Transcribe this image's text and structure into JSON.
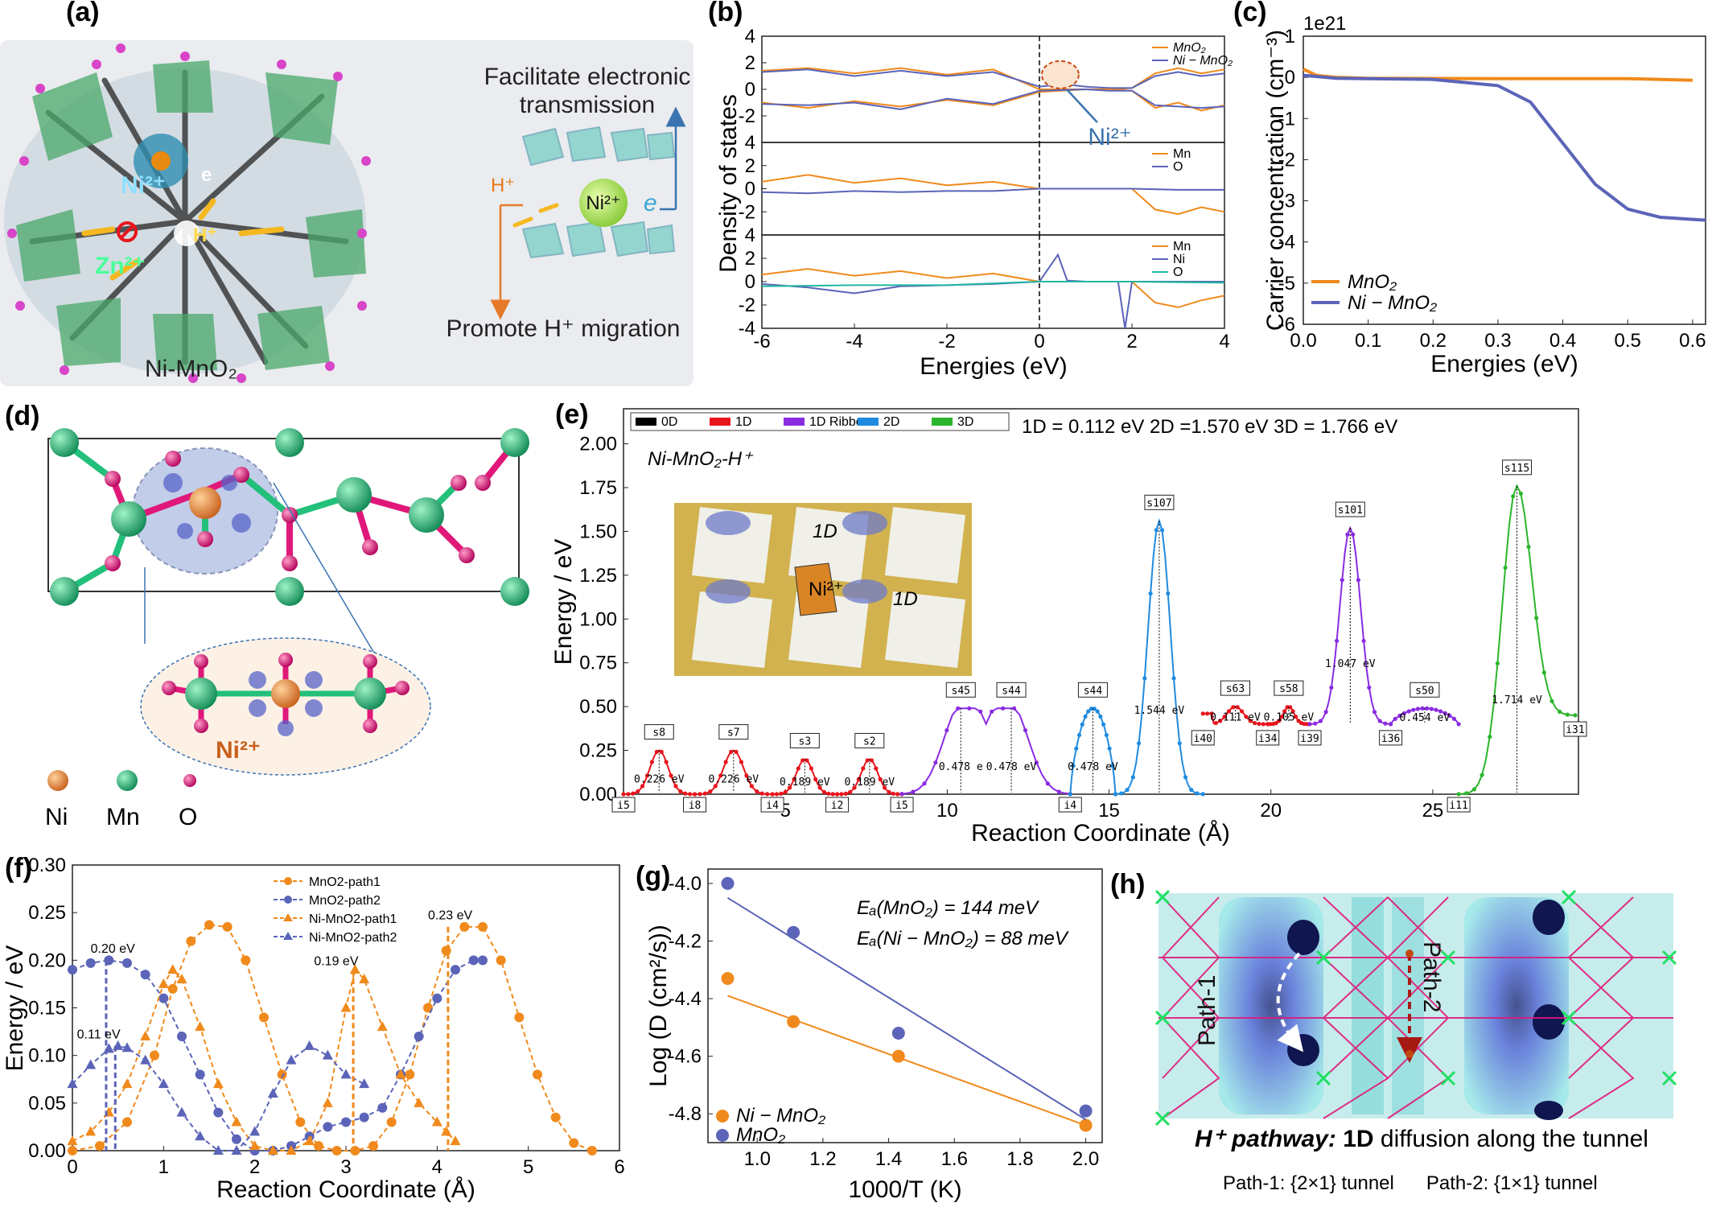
{
  "panels": {
    "a": {
      "label": "(a)",
      "title1": "Facilitate electronic",
      "title2": "transmission",
      "bottom": "Promote H⁺ migration",
      "material": "Ni-MnO₂",
      "ions": {
        "ni": "Ni²⁺",
        "zn": "Zn²⁺",
        "h": "H⁺",
        "e": "e"
      }
    },
    "d": {
      "label": "(d)",
      "legend": [
        {
          "name": "Ni",
          "color": "#e07b39"
        },
        {
          "name": "Mn",
          "color": "#22c07a"
        },
        {
          "name": "O",
          "color": "#e0187a"
        }
      ],
      "ion_label": "Ni²⁺"
    },
    "h": {
      "label": "(h)",
      "path1": "Path-1",
      "path2": "Path-2",
      "caption_bold": "H⁺ pathway:",
      "caption_1d": " 1D",
      "caption_rest": " diffusion along the tunnel",
      "footer": "Path-1: {2×1} tunnel      Path-2: {1×1} tunnel"
    }
  },
  "colors": {
    "mno2": "#f08a1c",
    "nimno2": "#5b64b8",
    "o": "#22b7a0",
    "c0D": "#000000",
    "c1D": "#e8141c",
    "c1DR": "#8a2be2",
    "c2D": "#1f8be0",
    "c3D": "#2cb52c"
  },
  "chart_data": [
    {
      "id": "b",
      "label": "(b)",
      "type": "line",
      "ylabel": "Density of states",
      "xlabel": "Energies (eV)",
      "xlim": [
        -6,
        4
      ],
      "xticks": [
        "-6",
        "-4",
        "-2",
        "0",
        "2",
        "4"
      ],
      "annotation": "Ni²⁺",
      "subplots": [
        {
          "ylim": [
            -4,
            4
          ],
          "yticks": [
            "4",
            "2",
            "0",
            "-2"
          ],
          "legend": [
            "MnO₂",
            "Ni − MnO₂"
          ],
          "series": [
            {
              "name": "MnO₂",
              "x": [
                -6,
                -5,
                -4,
                -3,
                -2,
                -1,
                0,
                0.5,
                1,
                1.5,
                2,
                2.5,
                3,
                3.5,
                4
              ],
              "y": [
                1.4,
                1.6,
                1.2,
                1.6,
                1.1,
                1.5,
                0,
                0,
                0,
                0,
                0.1,
                1.2,
                1.6,
                1.2,
                1.5
              ]
            },
            {
              "name": "Ni − MnO₂",
              "x": [
                -6,
                -5,
                -4,
                -3,
                -2,
                -1,
                0,
                0.5,
                1,
                1.5,
                2,
                2.5,
                3,
                3.5,
                4
              ],
              "y": [
                1.3,
                1.5,
                1.0,
                1.4,
                1.0,
                1.3,
                0.2,
                0.4,
                0.2,
                0.1,
                0.1,
                1.0,
                1.3,
                1.0,
                1.2
              ]
            },
            {
              "name": "MnO₂ (down)",
              "x": [
                -6,
                -5,
                -4,
                -3,
                -2,
                -1,
                0,
                1,
                1.5,
                2,
                2.5,
                3,
                3.5,
                4
              ],
              "y": [
                -1.0,
                -1.4,
                -0.9,
                -1.3,
                -0.8,
                -1.2,
                -0.2,
                0,
                0,
                -0.1,
                -1.4,
                -1.0,
                -1.6,
                -1.2
              ]
            },
            {
              "name": "Ni − MnO₂ (down)",
              "x": [
                -6,
                -5,
                -4,
                -3,
                -2,
                -1,
                0,
                1,
                1.5,
                2,
                2.5,
                3,
                3.5,
                4
              ],
              "y": [
                -1.1,
                -1.2,
                -1.0,
                -1.5,
                -0.7,
                -1.1,
                -0.1,
                0,
                -0.1,
                -0.1,
                -1.2,
                -1.3,
                -1.4,
                -1.3
              ]
            }
          ]
        },
        {
          "ylim": [
            -4,
            4
          ],
          "yticks": [
            "4",
            "2",
            "0",
            "-2"
          ],
          "legend": [
            "Mn",
            "O"
          ],
          "series": [
            {
              "name": "Mn",
              "x": [
                -6,
                -5,
                -4,
                -3,
                -2,
                -1,
                0,
                1,
                2,
                2.5,
                3,
                3.5,
                4
              ],
              "y": [
                0.6,
                1.2,
                0.5,
                0.9,
                0.3,
                0.6,
                0,
                0,
                0,
                -1.8,
                -2.2,
                -1.6,
                -2.0
              ]
            },
            {
              "name": "O",
              "x": [
                -6,
                -5,
                -4,
                -3,
                -2,
                -1,
                0,
                1,
                2,
                3,
                4
              ],
              "y": [
                -0.3,
                -0.4,
                -0.2,
                -0.3,
                -0.2,
                -0.2,
                0,
                0,
                0,
                -0.1,
                -0.1
              ]
            }
          ]
        },
        {
          "ylim": [
            -4,
            4
          ],
          "yticks": [
            "4",
            "2",
            "0",
            "-2",
            "-4"
          ],
          "legend": [
            "Mn",
            "Ni",
            "O"
          ],
          "series": [
            {
              "name": "Mn",
              "x": [
                -6,
                -5,
                -4,
                -3,
                -2,
                -1,
                0,
                1,
                2,
                2.5,
                3,
                3.5,
                4
              ],
              "y": [
                0.6,
                1.1,
                0.5,
                0.9,
                0.3,
                0.7,
                0,
                0,
                0,
                -1.8,
                -2.2,
                -1.6,
                -1.2
              ]
            },
            {
              "name": "Ni",
              "x": [
                -6,
                -5,
                -4,
                -3,
                -2,
                -1,
                0,
                0.4,
                0.6,
                1,
                1.7,
                1.85,
                2,
                3,
                4
              ],
              "y": [
                -0.2,
                -0.5,
                -1.0,
                -0.4,
                -0.3,
                -0.2,
                0,
                2.3,
                0.1,
                0,
                0,
                -4.0,
                0,
                0,
                0
              ]
            },
            {
              "name": "O",
              "x": [
                -6,
                -4,
                -2,
                0,
                2,
                4
              ],
              "y": [
                -0.4,
                -0.3,
                -0.3,
                0,
                0,
                -0.1
              ]
            }
          ]
        }
      ]
    },
    {
      "id": "c",
      "label": "(c)",
      "type": "line",
      "ylabel": "Carrier concentration (cm⁻³)",
      "xlabel": "Energies (eV)",
      "multiplier": "1e21",
      "xlim": [
        0,
        0.62
      ],
      "ylim": [
        -6,
        1
      ],
      "xticks": [
        "0.0",
        "0.1",
        "0.2",
        "0.3",
        "0.4",
        "0.5",
        "0.6"
      ],
      "yticks": [
        "1",
        "0",
        "-1",
        "-2",
        "-3",
        "-4",
        "-5",
        "-6"
      ],
      "series": [
        {
          "name": "MnO₂",
          "x": [
            0,
            0.02,
            0.05,
            0.1,
            0.3,
            0.5,
            0.6
          ],
          "y": [
            0.2,
            0.05,
            0.0,
            -0.02,
            -0.03,
            -0.03,
            -0.07
          ]
        },
        {
          "name": "Ni − MnO₂",
          "x": [
            0,
            0.05,
            0.1,
            0.2,
            0.3,
            0.35,
            0.4,
            0.45,
            0.5,
            0.55,
            0.6,
            0.62
          ],
          "y": [
            0.05,
            -0.02,
            -0.03,
            -0.05,
            -0.2,
            -0.6,
            -1.6,
            -2.6,
            -3.2,
            -3.4,
            -3.45,
            -3.47
          ]
        }
      ]
    },
    {
      "id": "e",
      "label": "(e)",
      "type": "line",
      "ylabel": "Energy / eV",
      "xlabel": "Reaction Coordinate (Å)",
      "xlim": [
        0,
        29.5
      ],
      "ylim": [
        0,
        2.2
      ],
      "xticks": [
        "5",
        "10",
        "15",
        "20",
        "25"
      ],
      "yticks": [
        "0.00",
        "0.25",
        "0.50",
        "0.75",
        "1.00",
        "1.25",
        "1.50",
        "1.75",
        "2.00"
      ],
      "legend": [
        "0D",
        "1D",
        "1D Ribbon",
        "2D",
        "3D"
      ],
      "header": "1D = 0.112 eV   2D =1.570 eV   3D = 1.766 eV",
      "inset_title": "Ni-MnO₂-H⁺",
      "inset_labels": [
        "1D",
        "Ni²⁺",
        "1D"
      ],
      "segments": [
        {
          "dim": "1D",
          "x0": 0,
          "x1": 2.2,
          "peak": 0.25,
          "label": "s8",
          "barrier": "0.226 eV"
        },
        {
          "dim": "1D",
          "x0": 2.2,
          "x1": 4.6,
          "peak": 0.25,
          "label": "s7",
          "barrier": "0.226 eV"
        },
        {
          "dim": "1D",
          "x0": 4.6,
          "x1": 6.6,
          "peak": 0.2,
          "label": "s3",
          "barrier": "0.189 eV"
        },
        {
          "dim": "1D",
          "x0": 6.6,
          "x1": 8.6,
          "peak": 0.2,
          "label": "s2",
          "barrier": "0.189 eV"
        },
        {
          "dim": "1D Ribbon",
          "x0": 8.6,
          "x1": 13.8,
          "peak": 0.49,
          "double": true,
          "label": "s45",
          "label2": "s44",
          "barrier": "0.478 e",
          "barrier2": "0.478 eV"
        },
        {
          "dim": "2D",
          "x0": 13.8,
          "x1": 15.2,
          "peak": 0.49,
          "plateau": true,
          "label": "s44",
          "barrier": "0.478 eV"
        },
        {
          "dim": "2D",
          "x0": 15.2,
          "x1": 17.9,
          "peak": 1.56,
          "label": "s107",
          "barrier": "1.544 eV"
        },
        {
          "dim": "1D",
          "x0": 17.9,
          "x1": 19.9,
          "peak": 0.5,
          "base": 0.4,
          "label": "s63",
          "barrier": "0.111 eV"
        },
        {
          "dim": "1D",
          "x0": 19.9,
          "x1": 21.2,
          "peak": 0.5,
          "base": 0.4,
          "label": "s58",
          "barrier": "0.105 eV"
        },
        {
          "dim": "1D Ribbon",
          "x0": 21.2,
          "x1": 23.7,
          "peak": 1.52,
          "base": 0.4,
          "label": "s101",
          "barrier": "1.047 eV"
        },
        {
          "dim": "1D Ribbon",
          "x0": 23.7,
          "x1": 25.8,
          "peak": 0.49,
          "plateau": true,
          "base": 0.4,
          "label": "s50",
          "barrier": "0.454 eV"
        },
        {
          "dim": "3D",
          "x0": 25.8,
          "x1": 29.4,
          "peak": 1.76,
          "end": 0.45,
          "label": "s115",
          "barrier": "1.714 eV"
        }
      ],
      "minima": [
        "i5",
        "i8",
        "i4",
        "i2",
        "i5",
        "i4",
        "i40",
        "i34",
        "i39",
        "i36",
        "i11",
        "i31"
      ]
    },
    {
      "id": "f",
      "label": "(f)",
      "type": "line",
      "ylabel": "Energy / eV",
      "xlabel": "Reaction Coordinate (Å)",
      "xlim": [
        0,
        6
      ],
      "ylim": [
        0,
        0.3
      ],
      "xticks": [
        "0",
        "1",
        "2",
        "3",
        "4",
        "5",
        "6"
      ],
      "yticks": [
        "0.00",
        "0.05",
        "0.10",
        "0.15",
        "0.20",
        "0.25",
        "0.30"
      ],
      "annotations": [
        "0.20 eV",
        "0.11 eV",
        "0.19 eV",
        "0.23 eV"
      ],
      "series": [
        {
          "name": "MnO2-path1",
          "marker": "circle",
          "color": "#f08a1c",
          "x": [
            0,
            0.3,
            0.6,
            0.9,
            1.1,
            1.3,
            1.5,
            1.7,
            1.9,
            2.1,
            2.3,
            2.5,
            2.7,
            2.9,
            3.1,
            3.3,
            3.5,
            3.7,
            3.9,
            4.1,
            4.3,
            4.5,
            4.7,
            4.9,
            5.1,
            5.3,
            5.5,
            5.7
          ],
          "y": [
            0,
            0.005,
            0.03,
            0.1,
            0.17,
            0.22,
            0.237,
            0.235,
            0.2,
            0.14,
            0.08,
            0.03,
            0.005,
            0,
            0,
            0.005,
            0.03,
            0.08,
            0.15,
            0.21,
            0.235,
            0.235,
            0.2,
            0.14,
            0.08,
            0.035,
            0.008,
            0
          ]
        },
        {
          "name": "MnO2-path2",
          "marker": "circle",
          "color": "#5b64b8",
          "x": [
            0,
            0.2,
            0.4,
            0.6,
            0.8,
            1.0,
            1.2,
            1.4,
            1.6,
            1.8,
            2.0,
            2.2,
            2.4,
            2.6,
            2.8,
            3.0,
            3.2,
            3.4,
            3.6,
            3.8,
            4.0,
            4.2,
            4.4,
            4.5
          ],
          "y": [
            0.19,
            0.197,
            0.2,
            0.197,
            0.185,
            0.16,
            0.12,
            0.08,
            0.04,
            0.012,
            0,
            0,
            0.005,
            0.015,
            0.025,
            0.03,
            0.035,
            0.045,
            0.08,
            0.12,
            0.16,
            0.19,
            0.2,
            0.2
          ]
        },
        {
          "name": "Ni-MnO2-path1",
          "marker": "triangle",
          "color": "#f08a1c",
          "x": [
            0,
            0.2,
            0.4,
            0.6,
            0.8,
            1.0,
            1.1,
            1.2,
            1.4,
            1.6,
            1.8,
            2.0,
            2.2,
            2.4,
            2.6,
            2.8,
            3.0,
            3.1,
            3.2,
            3.4,
            3.6,
            3.8,
            4.0,
            4.1,
            4.2
          ],
          "y": [
            0.01,
            0.02,
            0.04,
            0.07,
            0.12,
            0.175,
            0.19,
            0.18,
            0.13,
            0.07,
            0.03,
            0.005,
            0,
            0,
            0.01,
            0.05,
            0.15,
            0.19,
            0.18,
            0.13,
            0.08,
            0.05,
            0.03,
            0.02,
            0.01
          ]
        },
        {
          "name": "Ni-MnO2-path2",
          "marker": "triangle",
          "color": "#5b64b8",
          "x": [
            0,
            0.2,
            0.4,
            0.5,
            0.6,
            0.8,
            1.0,
            1.2,
            1.4,
            1.6,
            1.8,
            2.0,
            2.2,
            2.4,
            2.6,
            2.8,
            3.0,
            3.2
          ],
          "y": [
            0.07,
            0.09,
            0.107,
            0.11,
            0.108,
            0.095,
            0.07,
            0.04,
            0.015,
            0,
            0,
            0.02,
            0.06,
            0.095,
            0.11,
            0.1,
            0.08,
            0.07
          ]
        }
      ],
      "vlines": [
        {
          "x": 0.37,
          "y": 0.2,
          "color": "#5b64b8"
        },
        {
          "x": 0.47,
          "y": 0.11,
          "color": "#5b64b8"
        },
        {
          "x": 3.08,
          "y": 0.19,
          "color": "#f08a1c"
        },
        {
          "x": 4.12,
          "y": 0.235,
          "color": "#f08a1c"
        }
      ]
    },
    {
      "id": "g",
      "label": "(g)",
      "type": "scatter",
      "ylabel": "Log (D (cm²/s))",
      "xlabel": "1000/T (K)",
      "xlim": [
        0.85,
        2.05
      ],
      "ylim": [
        -4.9,
        -3.95
      ],
      "xticks": [
        "1.0",
        "1.2",
        "1.4",
        "1.6",
        "1.8",
        "2.0"
      ],
      "yticks": [
        "-4.0",
        "-4.2",
        "-4.4",
        "-4.6",
        "-4.8"
      ],
      "annotations": [
        "Eₐ(MnO₂) = 144 meV",
        "Eₐ(Ni − MnO₂) = 88 meV"
      ],
      "series": [
        {
          "name": "Ni − MnO₂",
          "color": "#f08a1c",
          "x": [
            0.91,
            1.11,
            1.43,
            2.0
          ],
          "y": [
            -4.33,
            -4.48,
            -4.6,
            -4.84
          ],
          "fit": [
            [
              0.91,
              -4.39
            ],
            [
              2.0,
              -4.84
            ]
          ]
        },
        {
          "name": "MnO₂",
          "color": "#5b64b8",
          "x": [
            0.91,
            1.11,
            1.43,
            2.0
          ],
          "y": [
            -4.0,
            -4.17,
            -4.52,
            -4.79
          ],
          "fit": [
            [
              0.91,
              -4.05
            ],
            [
              2.0,
              -4.82
            ]
          ]
        }
      ]
    }
  ]
}
